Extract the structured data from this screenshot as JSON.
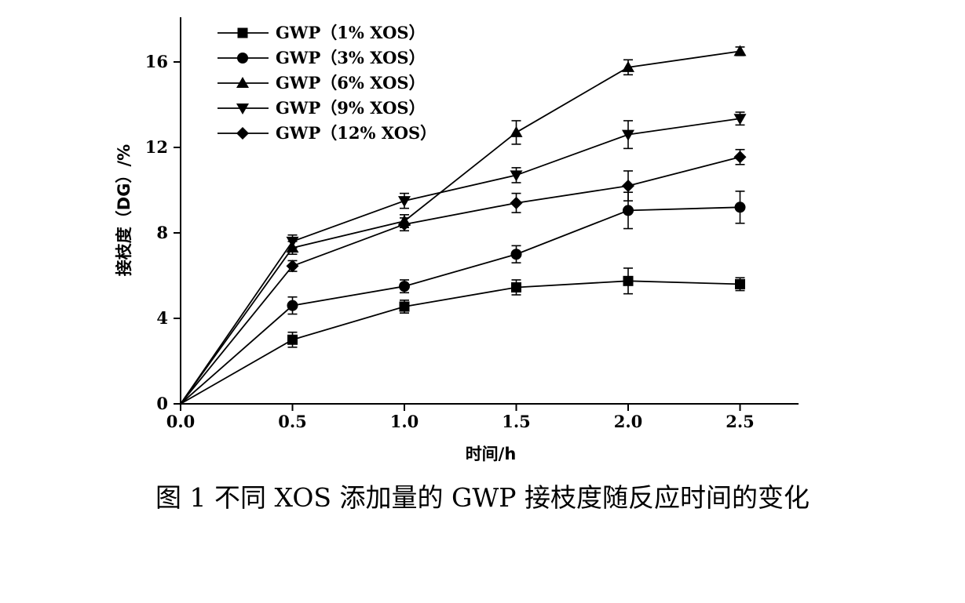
{
  "caption": "图 1 不同 XOS 添加量的 GWP 接枝度随反应时间的变化",
  "chart_data": {
    "type": "line",
    "xlabel": "时间/h",
    "ylabel": "接枝度（DG）/%",
    "xlim": [
      0,
      2.75
    ],
    "ylim": [
      0,
      18
    ],
    "xticks": [
      0,
      0.5,
      1.0,
      1.5,
      2.0,
      2.5
    ],
    "xtick_labels": [
      "0.0",
      "0.5",
      "1.0",
      "1.5",
      "2.0",
      "2.5"
    ],
    "yticks": [
      0,
      4,
      8,
      12,
      16
    ],
    "ytick_labels": [
      "0",
      "4",
      "8",
      "12",
      "16"
    ],
    "x": [
      0,
      0.5,
      1.0,
      1.5,
      2.0,
      2.5
    ],
    "legend_position": "top-left",
    "grid": false,
    "series": [
      {
        "name": "GWP（1% XOS）",
        "marker": "square",
        "values": [
          0,
          3.0,
          4.55,
          5.45,
          5.75,
          5.6
        ],
        "errors": [
          0,
          0.35,
          0.3,
          0.35,
          0.6,
          0.3
        ]
      },
      {
        "name": "GWP（3% XOS）",
        "marker": "circle",
        "values": [
          0,
          4.6,
          5.5,
          7.0,
          9.05,
          9.2
        ],
        "errors": [
          0,
          0.4,
          0.3,
          0.4,
          0.85,
          0.75
        ]
      },
      {
        "name": "GWP（6% XOS）",
        "marker": "triangle-up",
        "values": [
          0,
          7.3,
          8.55,
          12.7,
          15.75,
          16.5
        ],
        "errors": [
          0,
          0.3,
          0.3,
          0.55,
          0.35,
          0.2
        ]
      },
      {
        "name": "GWP（9% XOS）",
        "marker": "triangle-down",
        "values": [
          0,
          7.6,
          9.5,
          10.7,
          12.6,
          13.35
        ],
        "errors": [
          0,
          0.3,
          0.35,
          0.35,
          0.65,
          0.3
        ]
      },
      {
        "name": "GWP（12% XOS）",
        "marker": "diamond",
        "values": [
          0,
          6.45,
          8.4,
          9.4,
          10.2,
          11.55
        ],
        "errors": [
          0,
          0.25,
          0.3,
          0.45,
          0.7,
          0.35
        ]
      }
    ]
  }
}
